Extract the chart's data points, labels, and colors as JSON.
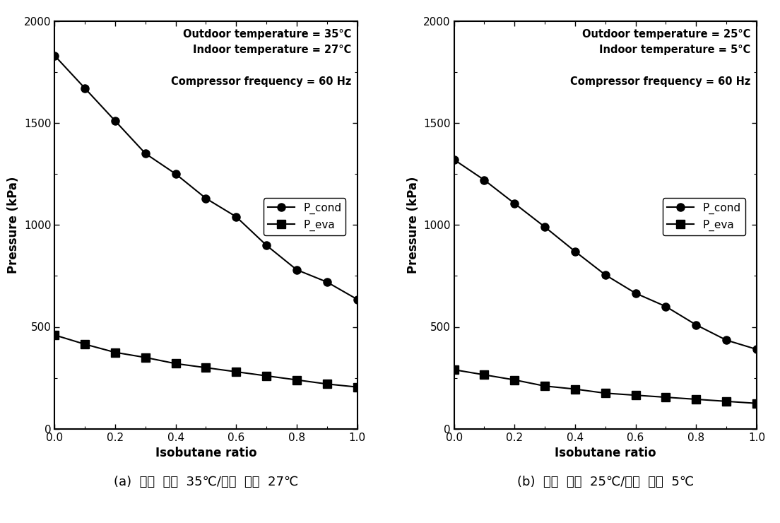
{
  "left_panel": {
    "annotation_line1": "Outdoor temperature = 35°C",
    "annotation_line2": "Indoor temperature = 27°C",
    "annotation_line3": "Compressor frequency = 60 Hz",
    "x": [
      0.0,
      0.1,
      0.2,
      0.3,
      0.4,
      0.5,
      0.6,
      0.7,
      0.8,
      0.9,
      1.0
    ],
    "p_cond": [
      1830,
      1670,
      1510,
      1350,
      1250,
      1130,
      1040,
      900,
      780,
      720,
      635
    ],
    "p_eva": [
      460,
      415,
      375,
      350,
      320,
      300,
      280,
      260,
      240,
      220,
      205
    ],
    "caption": "(a)  실외  온도  35℃/실내  온도  27℃"
  },
  "right_panel": {
    "annotation_line1": "Outdoor temperature = 25°C",
    "annotation_line2": "Indoor temperature = 5°C",
    "annotation_line3": "Compressor frequency = 60 Hz",
    "x": [
      0.0,
      0.1,
      0.2,
      0.3,
      0.4,
      0.5,
      0.6,
      0.7,
      0.8,
      0.9,
      1.0
    ],
    "p_cond": [
      1320,
      1220,
      1105,
      990,
      870,
      755,
      665,
      600,
      510,
      435,
      390
    ],
    "p_eva": [
      290,
      265,
      240,
      210,
      195,
      175,
      165,
      155,
      145,
      135,
      125
    ],
    "caption": "(b)  실외  온도  25℃/실내  온도  5℃"
  },
  "ylabel": "Pressure (kPa)",
  "xlabel": "Isobutane ratio",
  "ylim": [
    0,
    2000
  ],
  "xlim": [
    0.0,
    1.0
  ],
  "yticks": [
    0,
    500,
    1000,
    1500,
    2000
  ],
  "xticks": [
    0.0,
    0.2,
    0.4,
    0.6,
    0.8,
    1.0
  ],
  "legend_labels": [
    "P_cond",
    "P_eva"
  ],
  "line_color": "#000000",
  "marker_circle": "o",
  "marker_square": "s",
  "markersize": 8,
  "linewidth": 1.5,
  "fontsize_axis_label": 12,
  "fontsize_tick": 11,
  "fontsize_annotation": 10.5,
  "fontsize_legend": 11,
  "fontsize_caption": 13,
  "background_color": "#ffffff"
}
